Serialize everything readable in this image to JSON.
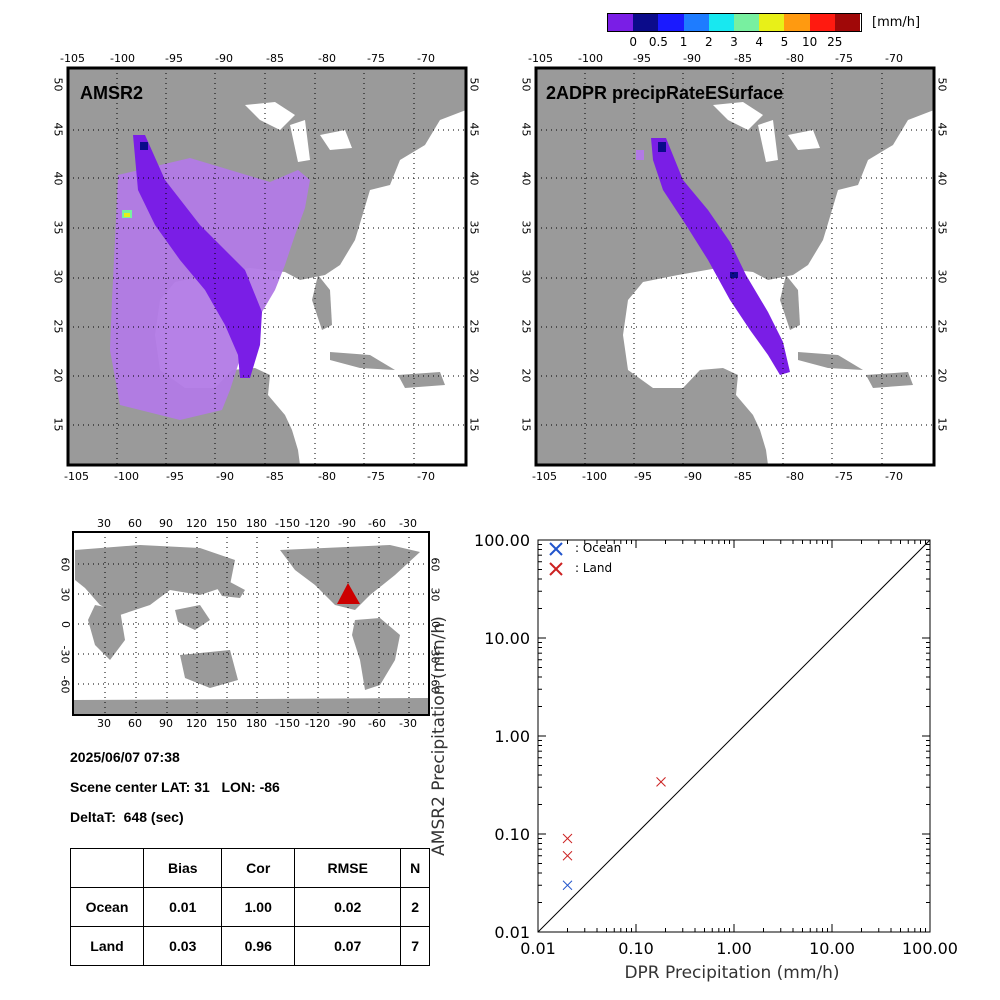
{
  "colorbar": {
    "unit": "[mm/h]",
    "labels": [
      "0",
      "0.5",
      "1",
      "2",
      "3",
      "4",
      "5",
      "10",
      "25"
    ],
    "colors": [
      "#7a1ee6",
      "#0b0b8a",
      "#1a1aff",
      "#1e7cff",
      "#18e8f0",
      "#78f0a0",
      "#e8f018",
      "#ff9a10",
      "#ff1a10",
      "#a00808"
    ]
  },
  "map_left": {
    "title": "AMSR2",
    "lon_ticks": [
      "-105",
      "-100",
      "-95",
      "-90",
      "-85",
      "-80",
      "-75",
      "-70"
    ],
    "lat_ticks": [
      "50",
      "45",
      "40",
      "35",
      "30",
      "25",
      "20",
      "15"
    ]
  },
  "map_right": {
    "title": "2ADPR precipRateESurface",
    "lon_ticks": [
      "-105",
      "-100",
      "-95",
      "-90",
      "-85",
      "-80",
      "-75",
      "-70"
    ],
    "lat_ticks": [
      "50",
      "45",
      "40",
      "35",
      "30",
      "25",
      "20",
      "15"
    ]
  },
  "world_map": {
    "lon_ticks": [
      "30",
      "60",
      "90",
      "120",
      "150",
      "180",
      "-150",
      "-120",
      "-90",
      "-60",
      "-30"
    ],
    "lat_ticks": [
      "60",
      "30",
      "0",
      "-30",
      "-60"
    ],
    "marker_color": "#cc0000"
  },
  "info": {
    "datetime": "2025/06/07 07:38",
    "scene_center": "Scene center LAT: 31   LON: -86",
    "deltat": "DeltaT:  648 (sec)"
  },
  "stats": {
    "headers": [
      "",
      "Bias",
      "Cor",
      "RMSE",
      "N"
    ],
    "rows": [
      [
        "Ocean",
        "0.01",
        "1.00",
        "0.02",
        "2"
      ],
      [
        "Land",
        "0.03",
        "0.96",
        "0.07",
        "7"
      ]
    ]
  },
  "chart_data": {
    "type": "scatter",
    "xlabel": "DPR Precipitation (mm/h)",
    "ylabel": "AMSR2 Precipitation (mm/h)",
    "x_scale": "log",
    "y_scale": "log",
    "xlim": [
      0.01,
      100
    ],
    "ylim": [
      0.01,
      100
    ],
    "x_tick_labels": [
      "0.01",
      "0.10",
      "1.00",
      "10.00",
      "100.00"
    ],
    "y_tick_labels": [
      "0.01",
      "0.10",
      "1.00",
      "10.00",
      "100.00"
    ],
    "legend_placement": "top-left",
    "series": [
      {
        "name": ": Ocean",
        "color": "#2255cc",
        "x": [
          0.02
        ],
        "y": [
          0.03
        ]
      },
      {
        "name": ": Land",
        "color": "#cc2222",
        "x": [
          0.02,
          0.02,
          0.18
        ],
        "y": [
          0.09,
          0.06,
          0.34
        ]
      }
    ],
    "reference_line": "1:1"
  }
}
